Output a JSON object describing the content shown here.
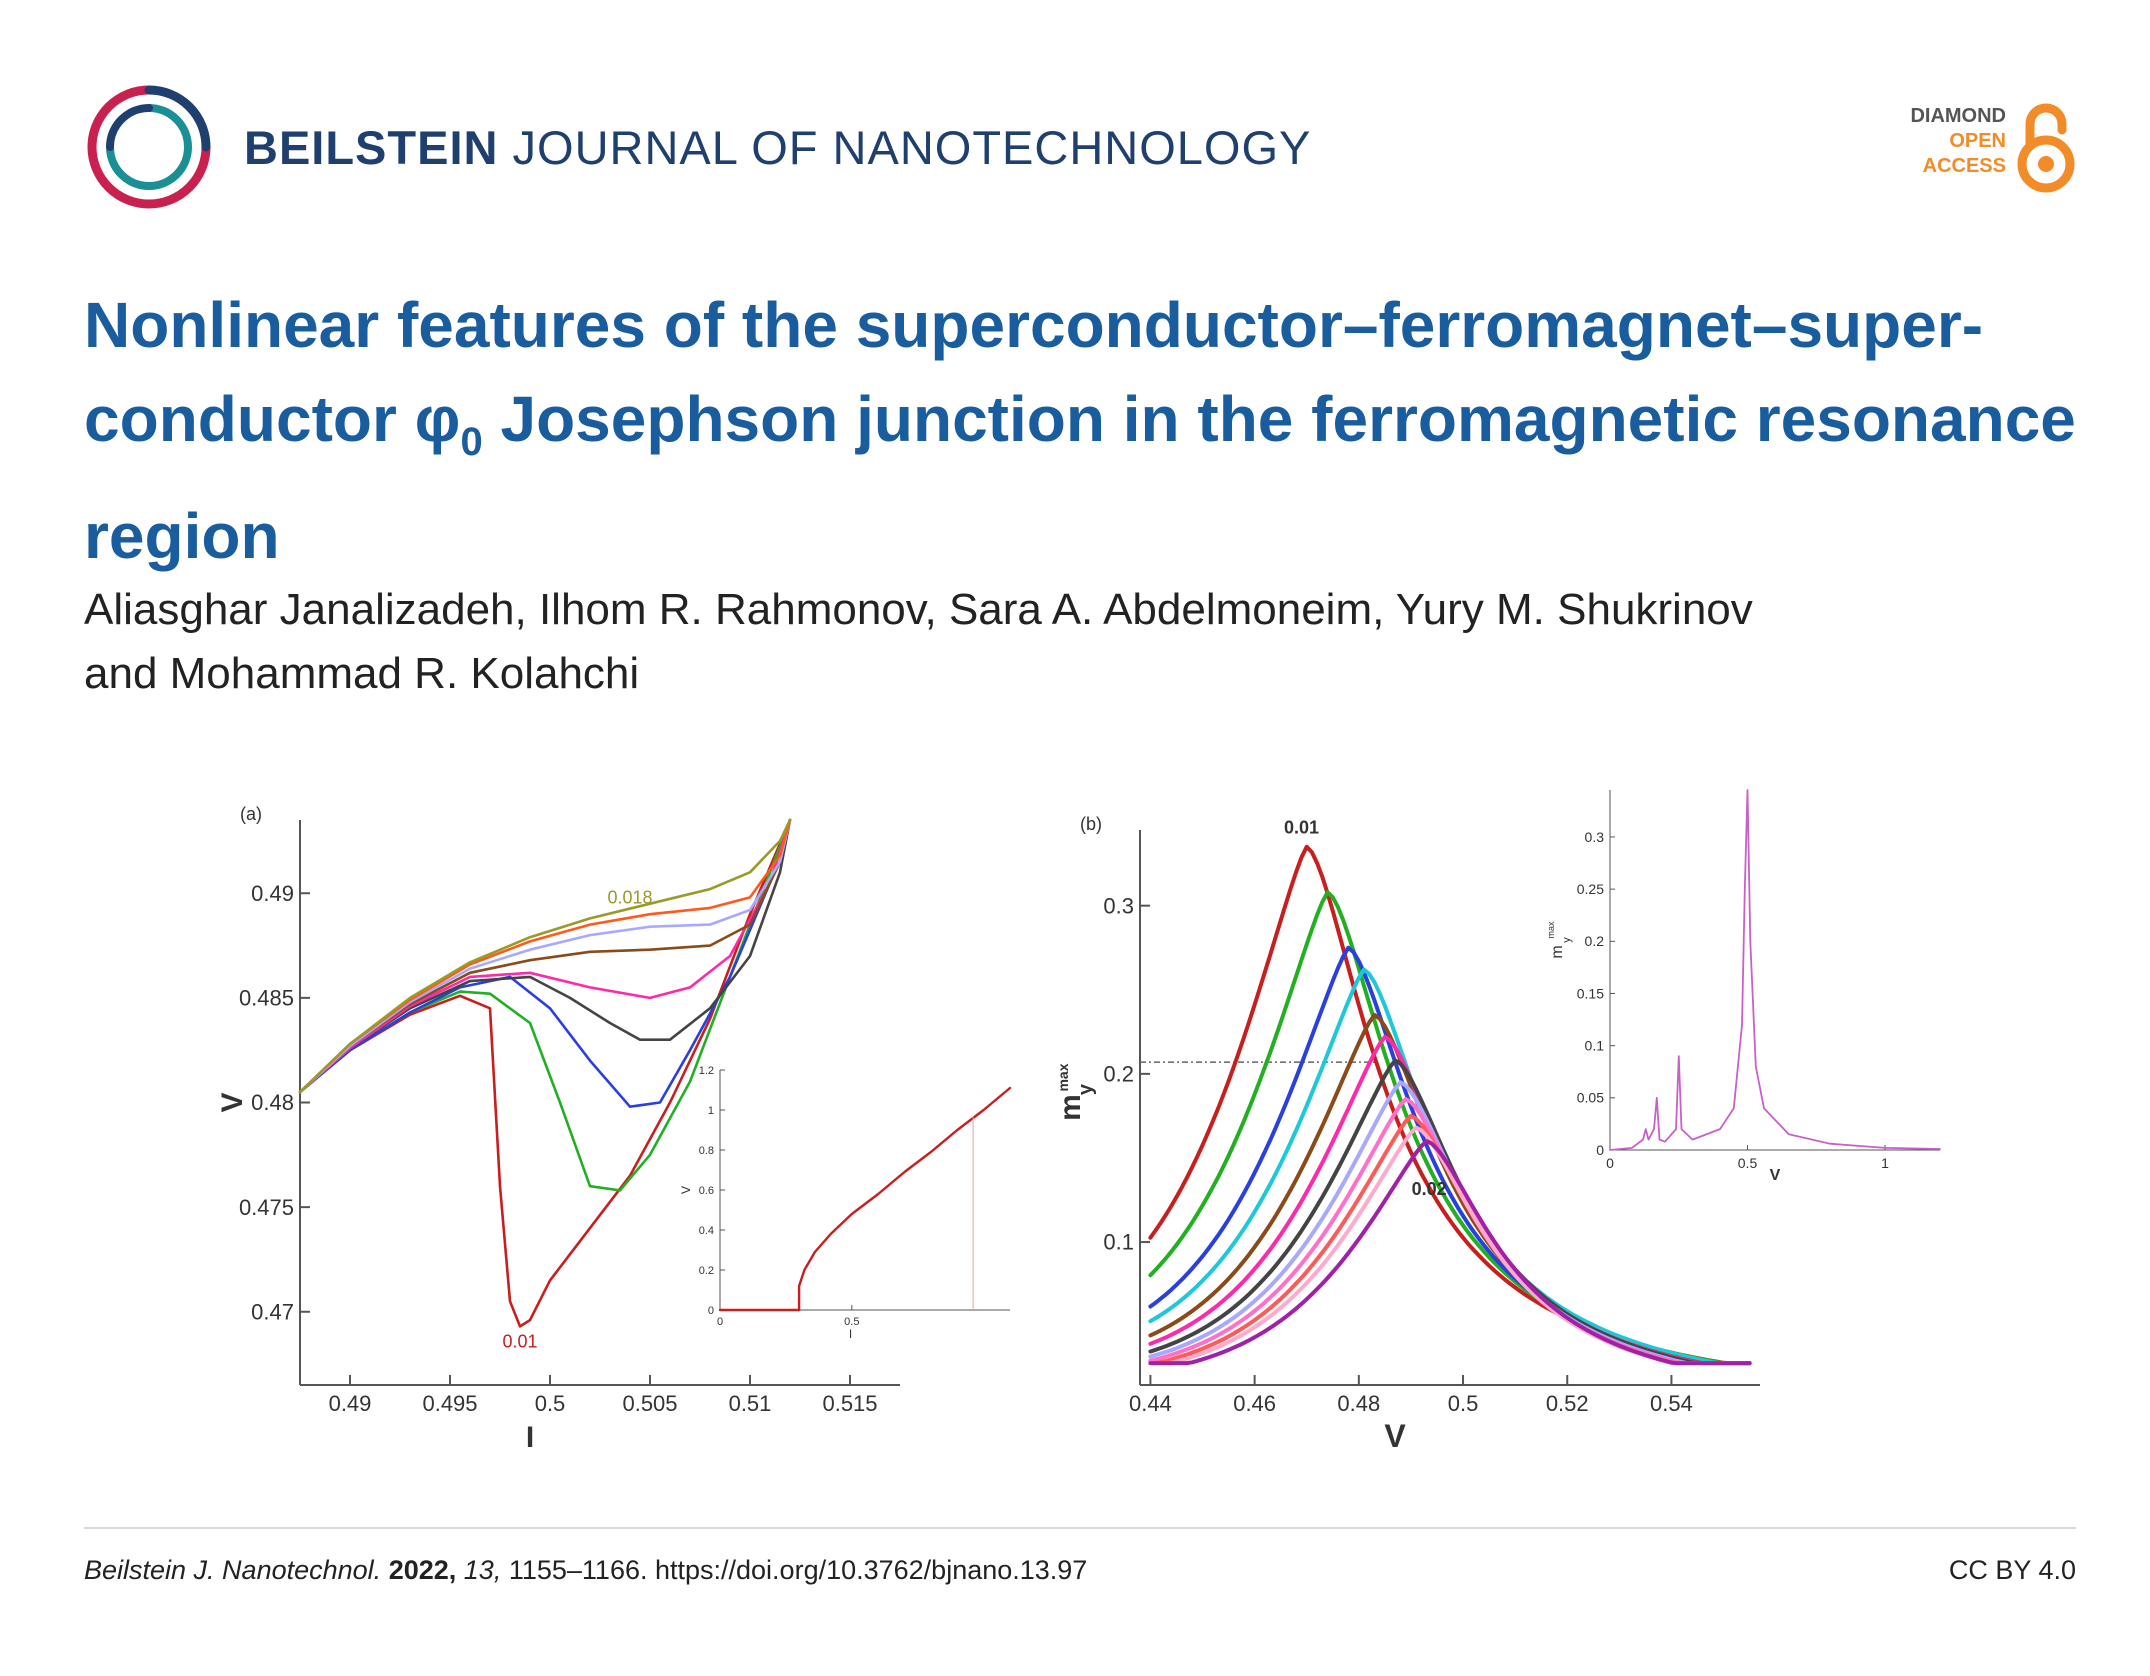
{
  "journal": {
    "name_bold": "BEILSTEIN",
    "name_rest": " JOURNAL OF NANOTECHNOLOGY",
    "badge": {
      "line1": "DIAMOND",
      "line2": "OPEN",
      "line3": "ACCESS"
    },
    "colors": {
      "navy": "#1f3f6e",
      "accent_red": "#c8204f",
      "accent_teal": "#1a8f94",
      "orange": "#f28c28"
    }
  },
  "article": {
    "title_part1": "Nonlinear features of the superconductor–ferromagnet–super-conductor ",
    "title_phi": "φ",
    "title_sub": "0",
    "title_part2": " Josephson junction in the ferromagnetic resonance region",
    "authors_line1": "Aliasghar Janalizadeh, Ilhom R. Rahmonov, Sara A. Abdelmoneim, Yury M. Shukrinov",
    "authors_line2": "and Mohammad R. Kolahchi"
  },
  "footer": {
    "journal_abbrev": "Beilstein J. Nanotechnol.",
    "year": "2022,",
    "volume": "13,",
    "pages_doi": "1155–1166. https://doi.org/10.3762/bjnano.13.97",
    "license": "CC BY 4.0"
  },
  "chart_data": [
    {
      "type": "line",
      "panel_label": "(a)",
      "xlabel": "I",
      "ylabel": "V",
      "xlim": [
        0.4875,
        0.5175
      ],
      "ylim": [
        0.4665,
        0.4935
      ],
      "xticks": [
        "0.49",
        "0.495",
        "0.5",
        "0.505",
        "0.51",
        "0.515"
      ],
      "yticks": [
        "0.47",
        "0.475",
        "0.48",
        "0.485",
        "0.49"
      ],
      "annotations": [
        "0.01",
        "0.018"
      ],
      "series": [
        {
          "color": "#c81e1e",
          "x": [
            0.4875,
            0.49,
            0.493,
            0.4955,
            0.497,
            0.4975,
            0.498,
            0.4985,
            0.499,
            0.5,
            0.502,
            0.504,
            0.506,
            0.508,
            0.51,
            0.512
          ],
          "y": [
            0.4805,
            0.4825,
            0.4842,
            0.4851,
            0.4845,
            0.476,
            0.4705,
            0.4693,
            0.4696,
            0.4715,
            0.474,
            0.4765,
            0.48,
            0.484,
            0.489,
            0.4935
          ]
        },
        {
          "color": "#22b022",
          "x": [
            0.4875,
            0.49,
            0.493,
            0.4955,
            0.497,
            0.499,
            0.5005,
            0.502,
            0.5035,
            0.505,
            0.507,
            0.509,
            0.511,
            0.512
          ],
          "y": [
            0.4805,
            0.4825,
            0.4843,
            0.4853,
            0.4852,
            0.4838,
            0.48,
            0.476,
            0.4758,
            0.4775,
            0.481,
            0.486,
            0.491,
            0.4935
          ]
        },
        {
          "color": "#2a3fe0",
          "x": [
            0.4875,
            0.49,
            0.493,
            0.4955,
            0.498,
            0.5,
            0.502,
            0.504,
            0.5055,
            0.507,
            0.509,
            0.511,
            0.512
          ],
          "y": [
            0.4805,
            0.4825,
            0.4843,
            0.4855,
            0.486,
            0.4845,
            0.482,
            0.4798,
            0.48,
            0.4825,
            0.486,
            0.4905,
            0.4935
          ]
        },
        {
          "color": "#444444",
          "x": [
            0.4875,
            0.49,
            0.493,
            0.496,
            0.499,
            0.501,
            0.503,
            0.5045,
            0.506,
            0.508,
            0.51,
            0.5115,
            0.512
          ],
          "y": [
            0.4805,
            0.4826,
            0.4845,
            0.4858,
            0.486,
            0.485,
            0.4838,
            0.483,
            0.483,
            0.4845,
            0.487,
            0.491,
            0.4935
          ]
        },
        {
          "color": "#ff2aa8",
          "x": [
            0.4875,
            0.49,
            0.493,
            0.496,
            0.499,
            0.502,
            0.505,
            0.507,
            0.509,
            0.511,
            0.512
          ],
          "y": [
            0.4805,
            0.4826,
            0.4846,
            0.486,
            0.4862,
            0.4855,
            0.485,
            0.4855,
            0.487,
            0.4905,
            0.4935
          ]
        },
        {
          "color": "#8a4a1a",
          "x": [
            0.4875,
            0.49,
            0.493,
            0.496,
            0.499,
            0.502,
            0.505,
            0.508,
            0.51,
            0.5115,
            0.512
          ],
          "y": [
            0.4805,
            0.4827,
            0.4847,
            0.4862,
            0.4868,
            0.4872,
            0.4873,
            0.4875,
            0.4885,
            0.4915,
            0.4935
          ]
        },
        {
          "color": "#a8a8ff",
          "x": [
            0.4875,
            0.49,
            0.493,
            0.496,
            0.499,
            0.502,
            0.505,
            0.508,
            0.51,
            0.5115,
            0.512
          ],
          "y": [
            0.4805,
            0.4827,
            0.4848,
            0.4864,
            0.4873,
            0.488,
            0.4884,
            0.4885,
            0.4892,
            0.4915,
            0.4935
          ]
        },
        {
          "color": "#ff5a1a",
          "x": [
            0.4875,
            0.49,
            0.493,
            0.496,
            0.499,
            0.502,
            0.505,
            0.508,
            0.51,
            0.5115,
            0.512
          ],
          "y": [
            0.4805,
            0.4828,
            0.4849,
            0.4866,
            0.4877,
            0.4885,
            0.489,
            0.4893,
            0.4898,
            0.4918,
            0.4935
          ]
        },
        {
          "color": "#9a9a28",
          "x": [
            0.4875,
            0.49,
            0.493,
            0.496,
            0.499,
            0.502,
            0.505,
            0.508,
            0.51,
            0.5115,
            0.512
          ],
          "y": [
            0.4805,
            0.4828,
            0.485,
            0.4867,
            0.4879,
            0.4888,
            0.4895,
            0.4902,
            0.491,
            0.4925,
            0.4935
          ]
        }
      ],
      "inset": {
        "xlabel": "I",
        "ylabel": "V",
        "xlim": [
          0,
          1.1
        ],
        "ylim": [
          0,
          1.2
        ],
        "xticks": [
          "0",
          "0.5"
        ],
        "yticks": [
          "0",
          "0.2",
          "0.4",
          "0.6",
          "0.8",
          "1",
          "1.2"
        ],
        "series": [
          {
            "color": "#c81e1e",
            "x": [
              0,
              0.3,
              0.3,
              0.32,
              0.36,
              0.42,
              0.5,
              0.6,
              0.7,
              0.8,
              0.9,
              1.0,
              1.1
            ],
            "y": [
              0,
              0,
              0.12,
              0.2,
              0.29,
              0.38,
              0.48,
              0.58,
              0.69,
              0.79,
              0.9,
              1.0,
              1.11
            ]
          }
        ]
      }
    },
    {
      "type": "line",
      "panel_label": "(b)",
      "xlabel": "V",
      "ylabel": "m",
      "ylabel_sub": "y",
      "ylabel_sup": "max",
      "xlim": [
        0.438,
        0.557
      ],
      "ylim": [
        0.015,
        0.345
      ],
      "xticks": [
        "0.44",
        "0.46",
        "0.48",
        "0.5",
        "0.52",
        "0.54"
      ],
      "yticks": [
        "0.1",
        "0.2",
        "0.3"
      ],
      "annotations": [
        "0.01",
        "0.02"
      ],
      "dashed_y": 0.207,
      "series": [
        {
          "color": "#c81e1e",
          "peak_v": 0.47,
          "peak_m": 0.335
        },
        {
          "color": "#22b022",
          "peak_v": 0.474,
          "peak_m": 0.308
        },
        {
          "color": "#2a3fe0",
          "peak_v": 0.478,
          "peak_m": 0.275
        },
        {
          "color": "#1ec8d8",
          "peak_v": 0.481,
          "peak_m": 0.262
        },
        {
          "color": "#8a4a1a",
          "peak_v": 0.483,
          "peak_m": 0.235
        },
        {
          "color": "#ff2aa8",
          "peak_v": 0.485,
          "peak_m": 0.222
        },
        {
          "color": "#444444",
          "peak_v": 0.487,
          "peak_m": 0.208
        },
        {
          "color": "#a8a8ff",
          "peak_v": 0.488,
          "peak_m": 0.195
        },
        {
          "color": "#ff70c8",
          "peak_v": 0.489,
          "peak_m": 0.185
        },
        {
          "color": "#ff5a5a",
          "peak_v": 0.49,
          "peak_m": 0.175
        },
        {
          "color": "#ffaacc",
          "peak_v": 0.491,
          "peak_m": 0.168
        },
        {
          "color": "#a020a8",
          "peak_v": 0.493,
          "peak_m": 0.16
        }
      ],
      "inset": {
        "xlabel": "V",
        "ylabel": "m",
        "ylabel_sub": "y",
        "ylabel_sup": "max",
        "xlim": [
          0,
          1.2
        ],
        "ylim": [
          0,
          0.345
        ],
        "xticks": [
          "0",
          "0.5",
          "1"
        ],
        "yticks": [
          "0",
          "0.05",
          "0.1",
          "0.15",
          "0.2",
          "0.25",
          "0.3"
        ],
        "series": [
          {
            "color": "#c860c8",
            "x": [
              0,
              0.08,
              0.12,
              0.13,
              0.14,
              0.16,
              0.17,
              0.18,
              0.2,
              0.24,
              0.25,
              0.26,
              0.3,
              0.4,
              0.45,
              0.48,
              0.49,
              0.5,
              0.51,
              0.53,
              0.56,
              0.65,
              0.8,
              1.0,
              1.2
            ],
            "y": [
              0,
              0.002,
              0.01,
              0.02,
              0.01,
              0.02,
              0.05,
              0.01,
              0.008,
              0.02,
              0.09,
              0.02,
              0.01,
              0.02,
              0.04,
              0.12,
              0.25,
              0.345,
              0.2,
              0.08,
              0.04,
              0.015,
              0.006,
              0.002,
              0.001
            ]
          }
        ]
      }
    }
  ]
}
